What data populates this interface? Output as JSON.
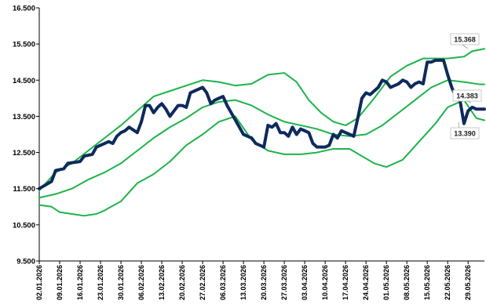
{
  "chart_data": {
    "type": "line",
    "title": "",
    "xlabel": "",
    "ylabel": "",
    "ylim": [
      9500,
      16500
    ],
    "y_ticks": [
      "9.500",
      "10.500",
      "11.500",
      "12.500",
      "13.500",
      "14.500",
      "15.500",
      "16.500"
    ],
    "x_ticks": [
      "02.01.2026",
      "09.01.2026",
      "16.01.2026",
      "23.01.2026",
      "30.01.2026",
      "06.02.2026",
      "13.02.2026",
      "20.02.2026",
      "27.02.2026",
      "06.03.2026",
      "13.03.2026",
      "20.03.2026",
      "27.03.2026",
      "03.04.2026",
      "10.04.2026",
      "17.04.2026",
      "24.04.2026",
      "01.05.2026",
      "08.05.2026",
      "15.05.2026",
      "22.05.2026",
      "29.05.2026"
    ],
    "grid": false,
    "colors": {
      "price": "#0d2a5c",
      "band": "#1db34a",
      "label_border": "#bbbbbb"
    },
    "series": [
      {
        "role": "price",
        "points": [
          [
            0,
            11500
          ],
          [
            3,
            11700
          ],
          [
            4,
            12000
          ],
          [
            6,
            12050
          ],
          [
            7,
            12200
          ],
          [
            10,
            12250
          ],
          [
            11,
            12400
          ],
          [
            13,
            12450
          ],
          [
            14,
            12650
          ],
          [
            16,
            12750
          ],
          [
            17,
            12800
          ],
          [
            18,
            12750
          ],
          [
            19,
            12950
          ],
          [
            20,
            13050
          ],
          [
            21,
            13100
          ],
          [
            22,
            13200
          ],
          [
            24,
            13050
          ],
          [
            25,
            13350
          ],
          [
            26,
            13800
          ],
          [
            27,
            13800
          ],
          [
            28,
            13600
          ],
          [
            29,
            13750
          ],
          [
            30,
            13850
          ],
          [
            31,
            13700
          ],
          [
            32,
            13500
          ],
          [
            34,
            13800
          ],
          [
            35,
            13800
          ],
          [
            36,
            13750
          ],
          [
            37,
            14150
          ],
          [
            38,
            14200
          ],
          [
            39,
            14250
          ],
          [
            40,
            14300
          ],
          [
            41,
            14150
          ],
          [
            42,
            13850
          ],
          [
            43,
            13950
          ],
          [
            44,
            14000
          ],
          [
            45,
            14050
          ],
          [
            46,
            13800
          ],
          [
            47,
            13600
          ],
          [
            48,
            13400
          ],
          [
            49,
            13200
          ],
          [
            50,
            13000
          ],
          [
            51,
            12950
          ],
          [
            52,
            12900
          ],
          [
            53,
            12750
          ],
          [
            54,
            12700
          ],
          [
            55,
            12650
          ],
          [
            56,
            13250
          ],
          [
            57,
            13200
          ],
          [
            58,
            13300
          ],
          [
            59,
            13050
          ],
          [
            60,
            13050
          ],
          [
            61,
            12950
          ],
          [
            62,
            13200
          ],
          [
            63,
            13000
          ],
          [
            64,
            13150
          ],
          [
            65,
            13100
          ],
          [
            66,
            13050
          ],
          [
            67,
            12750
          ],
          [
            68,
            12650
          ],
          [
            69,
            12650
          ],
          [
            70,
            12650
          ],
          [
            71,
            12700
          ],
          [
            72,
            13000
          ],
          [
            73,
            12900
          ],
          [
            74,
            13100
          ],
          [
            75,
            13050
          ],
          [
            76,
            13000
          ],
          [
            77,
            12950
          ],
          [
            78,
            13450
          ],
          [
            79,
            14000
          ],
          [
            80,
            14150
          ],
          [
            81,
            14100
          ],
          [
            82,
            14200
          ],
          [
            83,
            14300
          ],
          [
            84,
            14500
          ],
          [
            85,
            14450
          ],
          [
            86,
            14300
          ],
          [
            87,
            14350
          ],
          [
            88,
            14400
          ],
          [
            89,
            14500
          ],
          [
            90,
            14450
          ],
          [
            91,
            14300
          ],
          [
            92,
            14400
          ],
          [
            93,
            14450
          ],
          [
            94,
            14400
          ],
          [
            95,
            15000
          ],
          [
            96,
            15000
          ],
          [
            97,
            15050
          ],
          [
            98,
            15050
          ],
          [
            99,
            15050
          ],
          [
            100,
            14650
          ],
          [
            101,
            14300
          ],
          [
            102,
            14050
          ],
          [
            103,
            13950
          ],
          [
            104,
            13300
          ],
          [
            105,
            13650
          ],
          [
            106,
            13750
          ],
          [
            107,
            13700
          ],
          [
            108,
            13700
          ],
          [
            109,
            13700
          ]
        ]
      },
      {
        "role": "upper_band",
        "points": [
          [
            0,
            11450
          ],
          [
            4,
            11950
          ],
          [
            8,
            12200
          ],
          [
            12,
            12550
          ],
          [
            16,
            12900
          ],
          [
            20,
            13250
          ],
          [
            24,
            13650
          ],
          [
            28,
            14050
          ],
          [
            32,
            14200
          ],
          [
            36,
            14350
          ],
          [
            40,
            14500
          ],
          [
            44,
            14450
          ],
          [
            48,
            14350
          ],
          [
            52,
            14400
          ],
          [
            56,
            14650
          ],
          [
            60,
            14700
          ],
          [
            63,
            14450
          ],
          [
            66,
            13950
          ],
          [
            69,
            13600
          ],
          [
            72,
            13350
          ],
          [
            75,
            13250
          ],
          [
            78,
            13450
          ],
          [
            82,
            14000
          ],
          [
            86,
            14600
          ],
          [
            90,
            14900
          ],
          [
            94,
            15100
          ],
          [
            98,
            15100
          ],
          [
            100,
            15100
          ],
          [
            104,
            15150
          ],
          [
            106,
            15300
          ],
          [
            109,
            15368
          ]
        ]
      },
      {
        "role": "middle_band",
        "points": [
          [
            0,
            11250
          ],
          [
            4,
            11350
          ],
          [
            8,
            11500
          ],
          [
            12,
            11750
          ],
          [
            16,
            11950
          ],
          [
            20,
            12200
          ],
          [
            24,
            12550
          ],
          [
            28,
            12900
          ],
          [
            32,
            13200
          ],
          [
            36,
            13450
          ],
          [
            40,
            13750
          ],
          [
            44,
            13900
          ],
          [
            48,
            13950
          ],
          [
            52,
            13800
          ],
          [
            56,
            13550
          ],
          [
            60,
            13350
          ],
          [
            64,
            13250
          ],
          [
            68,
            13150
          ],
          [
            72,
            13000
          ],
          [
            76,
            12950
          ],
          [
            80,
            13000
          ],
          [
            84,
            13250
          ],
          [
            88,
            13600
          ],
          [
            92,
            13950
          ],
          [
            96,
            14300
          ],
          [
            100,
            14500
          ],
          [
            104,
            14450
          ],
          [
            108,
            14383
          ],
          [
            109,
            14383
          ]
        ]
      },
      {
        "role": "lower_band",
        "points": [
          [
            0,
            11050
          ],
          [
            3,
            11000
          ],
          [
            5,
            10850
          ],
          [
            8,
            10800
          ],
          [
            11,
            10750
          ],
          [
            14,
            10800
          ],
          [
            16,
            10900
          ],
          [
            20,
            11150
          ],
          [
            24,
            11650
          ],
          [
            28,
            11900
          ],
          [
            32,
            12250
          ],
          [
            36,
            12700
          ],
          [
            40,
            13000
          ],
          [
            44,
            13350
          ],
          [
            48,
            13500
          ],
          [
            52,
            12850
          ],
          [
            56,
            12550
          ],
          [
            60,
            12450
          ],
          [
            64,
            12450
          ],
          [
            68,
            12500
          ],
          [
            72,
            12600
          ],
          [
            76,
            12600
          ],
          [
            79,
            12400
          ],
          [
            82,
            12200
          ],
          [
            85,
            12100
          ],
          [
            89,
            12300
          ],
          [
            93,
            12800
          ],
          [
            97,
            13300
          ],
          [
            100,
            13750
          ],
          [
            104,
            13950
          ],
          [
            107,
            13450
          ],
          [
            109,
            13390
          ]
        ]
      }
    ],
    "data_labels": [
      "15.368",
      "14.383",
      "13.390"
    ],
    "data_label_values": [
      15368,
      14383,
      13390
    ]
  }
}
